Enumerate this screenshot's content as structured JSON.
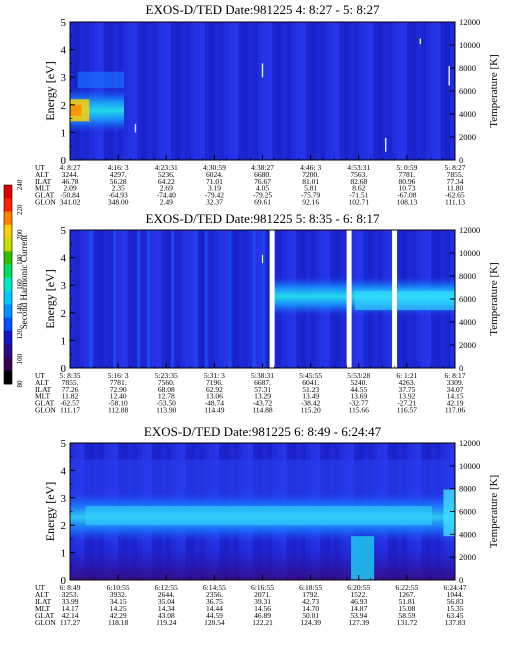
{
  "colorbar": {
    "label": "Second Harmonic Current",
    "ticks": [
      "80",
      "100",
      "120",
      "140",
      "160",
      "180",
      "200",
      "220",
      "240"
    ],
    "colors": [
      "#000000",
      "#3a0050",
      "#2a0a8a",
      "#1515c8",
      "#0050ff",
      "#0090ff",
      "#00c8ff",
      "#00e8c8",
      "#00e060",
      "#30c000",
      "#c8e000",
      "#ffd000",
      "#ff8000",
      "#ff2000",
      "#e00000"
    ]
  },
  "chart_data": [
    {
      "type": "heatmap",
      "title": "EXOS-D/TED   Date:981225  4: 8:27 - 5: 8:27",
      "ylabel": "Energy [eV]",
      "y2label": "Temperature [K]",
      "ylim": [
        0,
        5
      ],
      "y_ticks": [
        "0",
        "1",
        "2",
        "3",
        "4",
        "5"
      ],
      "y2lim": [
        0,
        12000
      ],
      "y2_ticks": [
        "0",
        "2000",
        "4000",
        "6000",
        "8000",
        "10000",
        "12000"
      ],
      "gaps": [],
      "band": {
        "center": 2.3,
        "width": 0.5
      },
      "ephemeris": {
        "row_labels": [
          "UT",
          "ALT",
          "ILAT",
          "MLT",
          "GLAT",
          "GLON"
        ],
        "columns": [
          [
            "4: 8:27",
            "3244.",
            "46.78",
            "2.09",
            "-50.84",
            "341.02"
          ],
          [
            "4:16: 3",
            "4297.",
            "56.28",
            "2.35",
            "-64.93",
            "348.00"
          ],
          [
            "4:23:31",
            "5236.",
            "64.22",
            "2.69",
            "-74.40",
            "2.49"
          ],
          [
            "4:30:59",
            "6024.",
            "71.01",
            "3.19",
            "-79.42",
            "32.37"
          ],
          [
            "4:38:27",
            "6680.",
            "76.67",
            "4.05",
            "-79.25",
            "69.61"
          ],
          [
            "4:46: 3",
            "7200.",
            "81.01",
            "5.81",
            "-75.79",
            "92.16"
          ],
          [
            "4:53:31",
            "7563.",
            "82.68",
            "8.62",
            "-71.51",
            "102.71"
          ],
          [
            "5: 0:59",
            "7781.",
            "80.96",
            "10.73",
            "-67.08",
            "108.13"
          ],
          [
            "5: 8:27",
            "7855.",
            "77.34",
            "11.80",
            "-62.65",
            "111.13"
          ]
        ]
      }
    },
    {
      "type": "heatmap",
      "title": "EXOS-D/TED   Date:981225  5: 8:35 - 6: 8:17",
      "ylabel": "Energy [eV]",
      "y2label": "Temperature [K]",
      "ylim": [
        0,
        5
      ],
      "y_ticks": [
        "0",
        "1",
        "2",
        "3",
        "4",
        "5"
      ],
      "y2lim": [
        0,
        12000
      ],
      "y2_ticks": [
        "0",
        "2000",
        "4000",
        "6000",
        "8000",
        "10000",
        "12000"
      ],
      "gaps": [
        0.525,
        0.725,
        0.843
      ],
      "band": {
        "center": 2.5,
        "width": 0.6
      },
      "ephemeris": {
        "row_labels": [
          "UT",
          "ALT",
          "ILAT",
          "MLT",
          "GLAT",
          "GLON"
        ],
        "columns": [
          [
            "5: 8:35",
            "7855.",
            "77.26",
            "11.82",
            "-62.57",
            "111.17"
          ],
          [
            "5:16: 3",
            "7781.",
            "72.90",
            "12.40",
            "-58.10",
            "112.88"
          ],
          [
            "5:23:35",
            "7560.",
            "68.08",
            "12.78",
            "-53.50",
            "113.90"
          ],
          [
            "5:31: 3",
            "7196.",
            "62.92",
            "13.06",
            "-48.74",
            "114.49"
          ],
          [
            "5:38:31",
            "6687.",
            "57.31",
            "13.29",
            "-43.72",
            "114.88"
          ],
          [
            "5:45:55",
            "6041.",
            "51.23",
            "13.49",
            "-38.42",
            "115.20"
          ],
          [
            "5:53:28",
            "5240.",
            "44.55",
            "13.69",
            "-32.77",
            "115.66"
          ],
          [
            "6: 1:21",
            "4263.",
            "37.75",
            "13.92",
            "-27.21",
            "116.57"
          ],
          [
            "6: 8:17",
            "3309.",
            "34.07",
            "14.15",
            "42.19",
            "117.06"
          ]
        ]
      }
    },
    {
      "type": "heatmap",
      "title": "EXOS-D/TED   Date:981225  6: 8:49 - 6:24:47",
      "ylabel": "Energy [eV]",
      "y2label": "Temperature [K]",
      "ylim": [
        0,
        5
      ],
      "y_ticks": [
        "0",
        "1",
        "2",
        "3",
        "4",
        "5"
      ],
      "y2lim": [
        0,
        12000
      ],
      "y2_ticks": [
        "0",
        "2000",
        "4000",
        "6000",
        "8000",
        "10000",
        "12000"
      ],
      "gaps": [],
      "band": {
        "center": 2.3,
        "width": 0.9
      },
      "ephemeris": {
        "row_labels": [
          "UT",
          "ALT",
          "ILAT",
          "MLT",
          "GLAT",
          "GLON"
        ],
        "columns": [
          [
            "6: 8:49",
            "3253.",
            "33.99",
            "14.17",
            "42.14",
            "117.27"
          ],
          [
            "6:10:55",
            "3932.",
            "34.15",
            "14.25",
            "42.29",
            "118.18"
          ],
          [
            "6:12:55",
            "2644.",
            "35.04",
            "14.34",
            "43.08",
            "119.24"
          ],
          [
            "6:14:55",
            "2356.",
            "36.75",
            "14.44",
            "44.59",
            "120.54"
          ],
          [
            "6:16:55",
            "2071.",
            "39.31",
            "14.56",
            "46.89",
            "122.21"
          ],
          [
            "6:18:55",
            "1792.",
            "42.73",
            "14.70",
            "50.01",
            "124.39"
          ],
          [
            "6:20:55",
            "1522.",
            "46.93",
            "14.87",
            "53.94",
            "127.39"
          ],
          [
            "6:22:55",
            "1267.",
            "51.81",
            "15.08",
            "58.59",
            "131.72"
          ],
          [
            "6:24:47",
            "1044.",
            "56.83",
            "15.35",
            "63.45",
            "137.83"
          ]
        ]
      }
    }
  ]
}
